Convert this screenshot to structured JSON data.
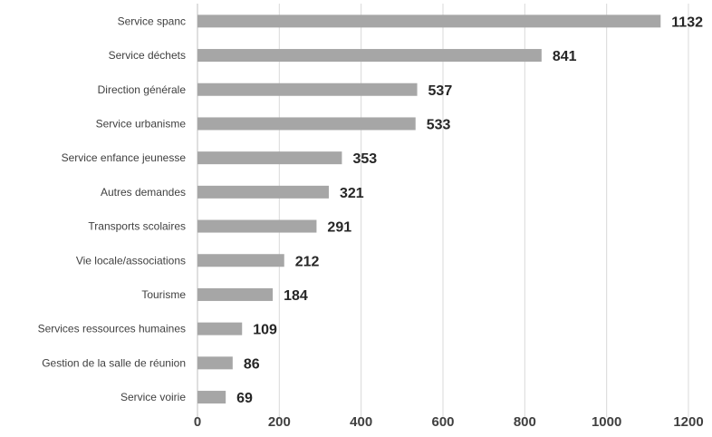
{
  "chart_data": {
    "type": "bar",
    "orientation": "horizontal",
    "title": "",
    "xlabel": "",
    "ylabel": "",
    "categories": [
      "Service spanc",
      "Service déchets",
      "Direction générale",
      "Service urbanisme",
      "Service enfance jeunesse",
      "Autres demandes",
      "Transports scolaires",
      "Vie locale/associations",
      "Tourisme",
      "Services ressources humaines",
      "Gestion de la salle de réunion",
      "Service voirie"
    ],
    "values": [
      1132,
      841,
      537,
      533,
      353,
      321,
      291,
      212,
      184,
      109,
      86,
      69
    ],
    "xlim": [
      0,
      1200
    ],
    "xticks": [
      0,
      200,
      400,
      600,
      800,
      1000,
      1200
    ],
    "grid": "vertical",
    "legend": "none",
    "colors": {
      "bar": "#a6a6a6",
      "grid": "#d9d9d9"
    }
  }
}
